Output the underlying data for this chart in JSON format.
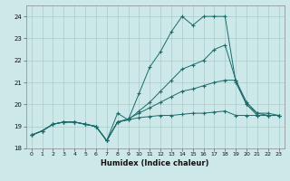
{
  "xlabel": "Humidex (Indice chaleur)",
  "bg_color": "#cce8e8",
  "grid_color": "#aacccc",
  "line_color": "#1a6b6b",
  "xlim": [
    -0.5,
    23.5
  ],
  "ylim": [
    18,
    24.5
  ],
  "xticks": [
    0,
    1,
    2,
    3,
    4,
    5,
    6,
    7,
    8,
    9,
    10,
    11,
    12,
    13,
    14,
    15,
    16,
    17,
    18,
    19,
    20,
    21,
    22,
    23
  ],
  "yticks": [
    18,
    19,
    20,
    21,
    22,
    23,
    24
  ],
  "lines": [
    [
      18.6,
      18.8,
      19.1,
      19.2,
      19.2,
      19.1,
      19.0,
      18.35,
      19.6,
      19.3,
      20.5,
      21.7,
      22.4,
      23.3,
      24.0,
      23.6,
      24.0,
      24.0,
      24.0,
      21.0,
      20.0,
      19.5,
      19.5,
      19.5
    ],
    [
      18.6,
      18.8,
      19.1,
      19.2,
      19.2,
      19.1,
      19.0,
      18.35,
      19.2,
      19.3,
      19.7,
      20.1,
      20.6,
      21.1,
      21.6,
      21.8,
      22.0,
      22.5,
      22.7,
      21.1,
      20.0,
      19.6,
      19.6,
      19.5
    ],
    [
      18.6,
      18.8,
      19.1,
      19.2,
      19.2,
      19.1,
      19.0,
      18.35,
      19.2,
      19.35,
      19.6,
      19.85,
      20.1,
      20.35,
      20.6,
      20.7,
      20.85,
      21.0,
      21.1,
      21.1,
      20.1,
      19.6,
      19.5,
      19.5
    ],
    [
      18.6,
      18.8,
      19.1,
      19.2,
      19.2,
      19.1,
      19.0,
      18.35,
      19.2,
      19.3,
      19.4,
      19.45,
      19.5,
      19.5,
      19.55,
      19.6,
      19.6,
      19.65,
      19.7,
      19.5,
      19.5,
      19.5,
      19.5,
      19.5
    ]
  ]
}
